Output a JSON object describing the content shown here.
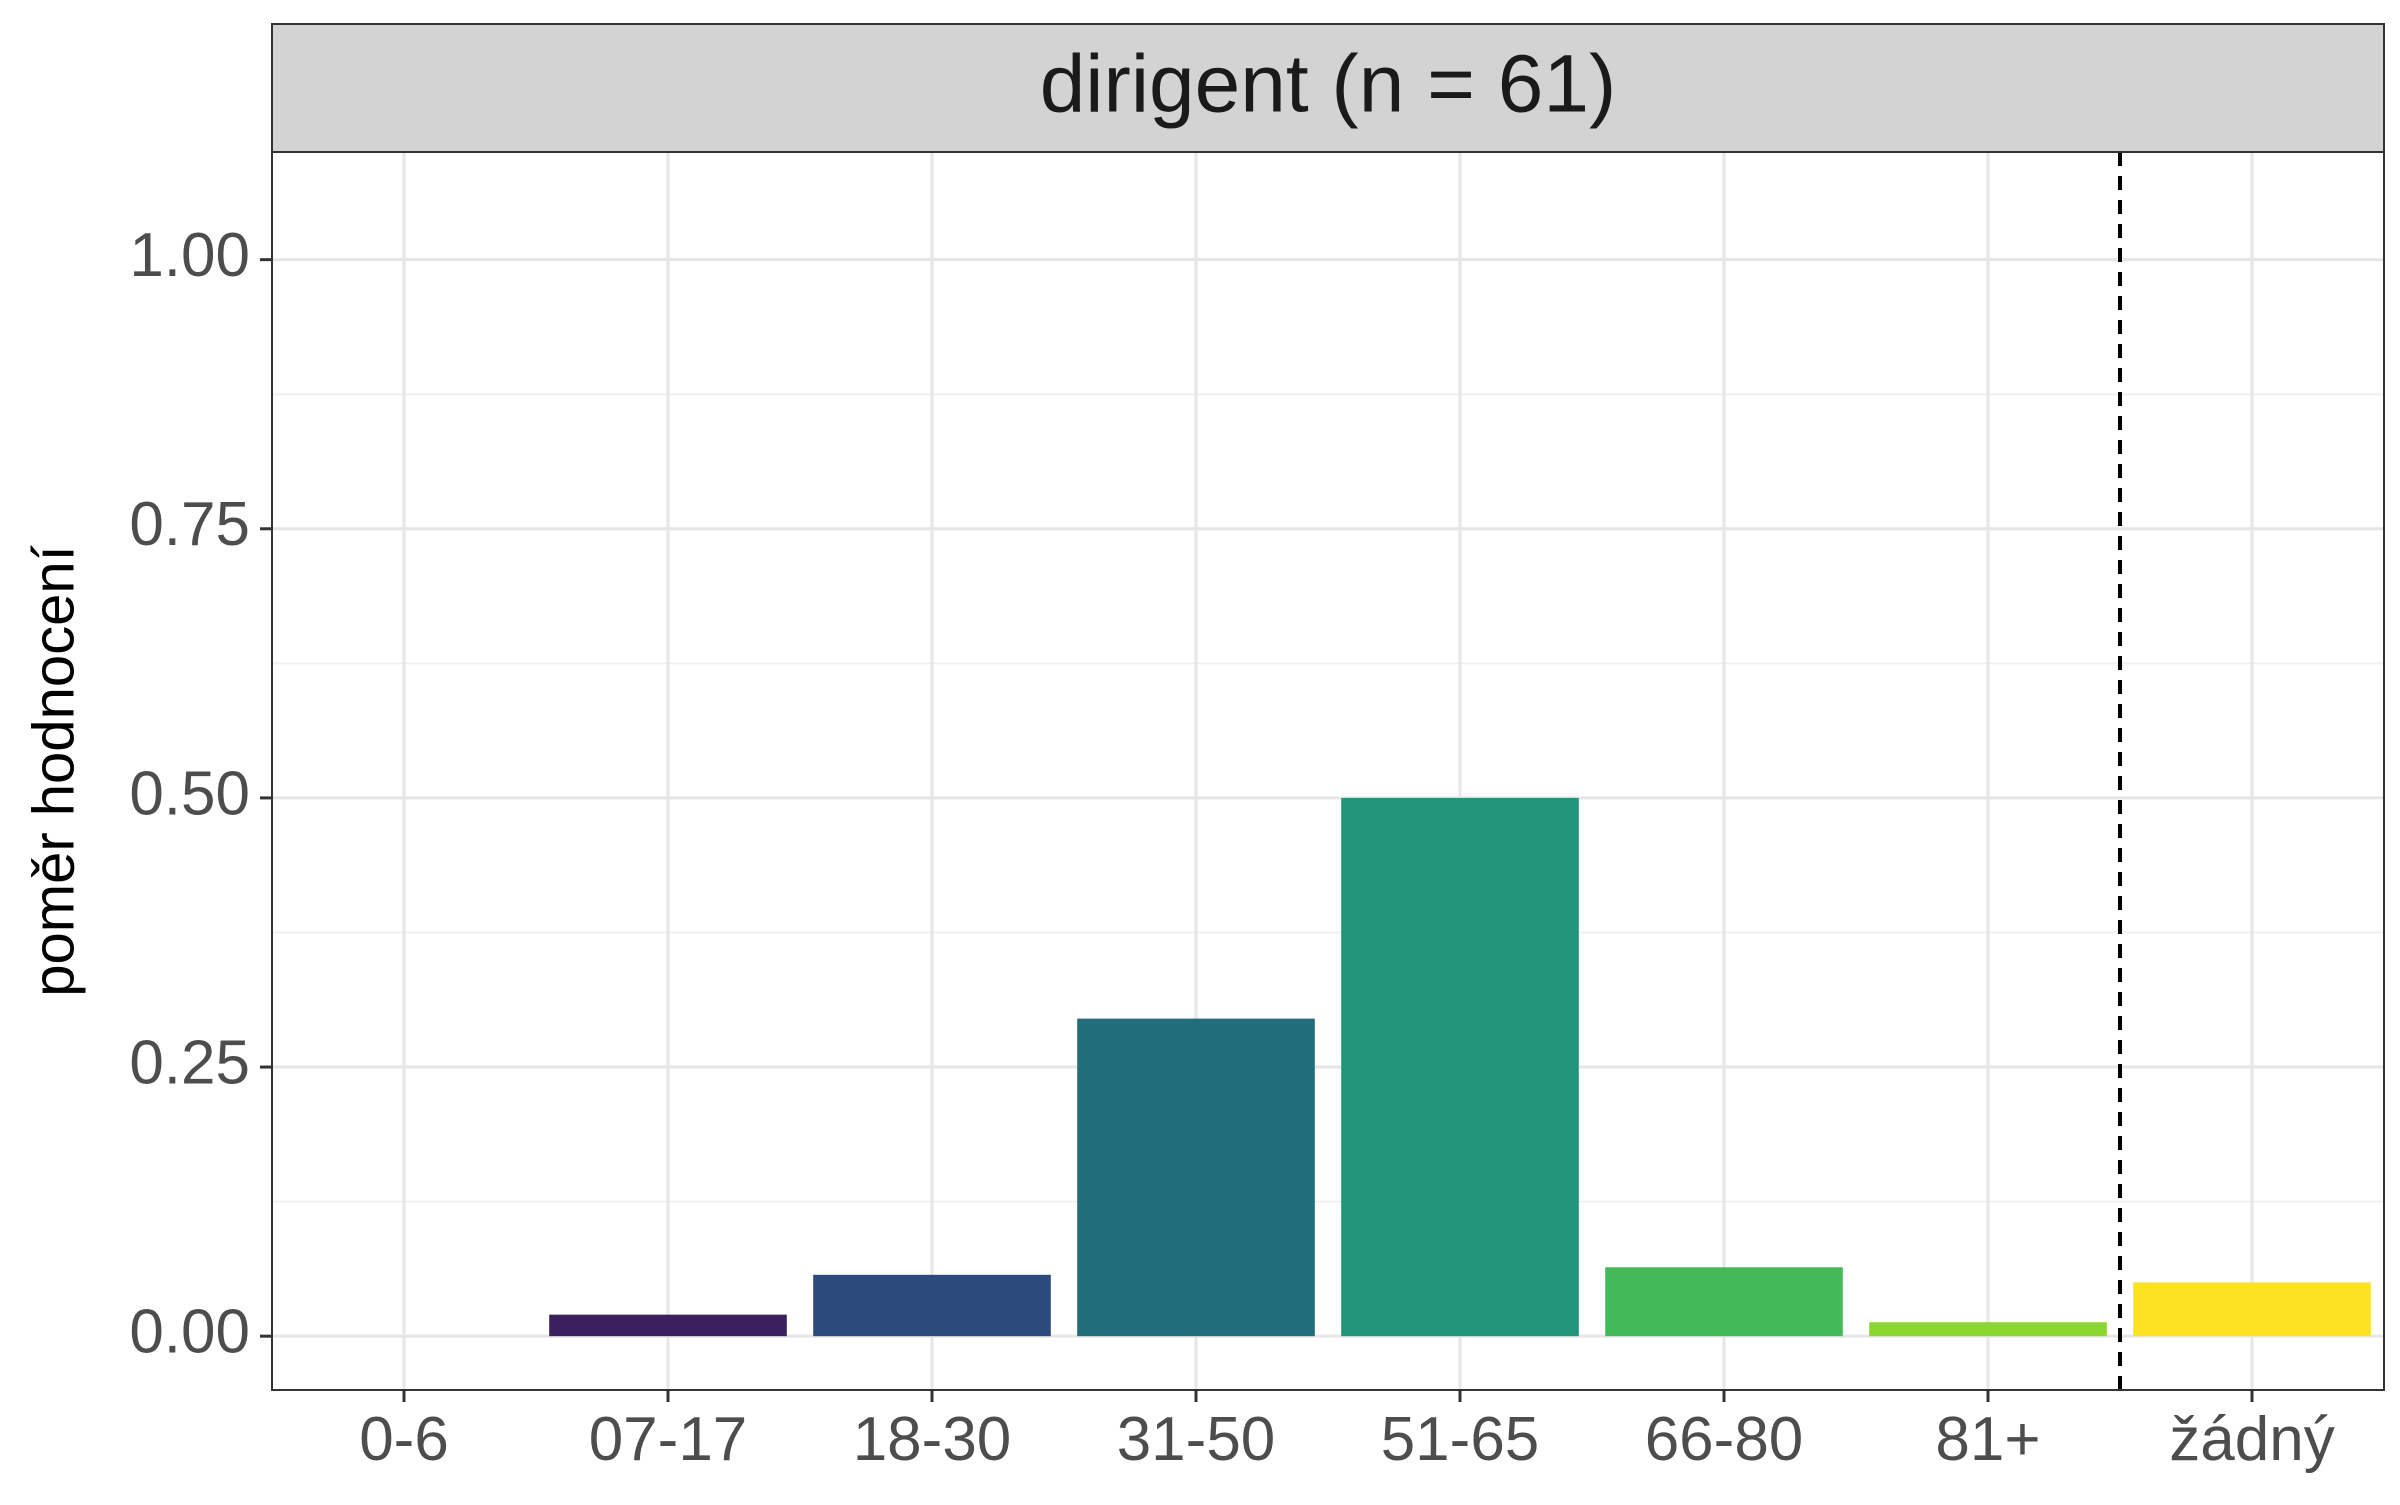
{
  "chart_data": {
    "type": "bar",
    "facet_title": "dirigent (n = 61)",
    "ylabel": "poměr hodnocení",
    "xlabel": "",
    "categories": [
      "0-6",
      "07-17",
      "18-30",
      "31-50",
      "51-65",
      "66-80",
      "81+",
      "žádný"
    ],
    "values": [
      0.0,
      0.02,
      0.057,
      0.295,
      0.5,
      0.064,
      0.013,
      0.05
    ],
    "colors": [
      "#440154",
      "#3B1F5F",
      "#2C4A7B",
      "#216E7A",
      "#21957A",
      "#44B95A",
      "#8BD72F",
      "#FBE324"
    ],
    "ylim": [
      -0.05,
      1.1
    ],
    "yticks": [
      0.0,
      0.25,
      0.5,
      0.75,
      1.0
    ],
    "ytick_labels": [
      "0.00",
      "0.25",
      "0.50",
      "0.75",
      "1.00"
    ],
    "separator_between": [
      "81+",
      "žádný"
    ],
    "grid": true,
    "legend": "none"
  }
}
